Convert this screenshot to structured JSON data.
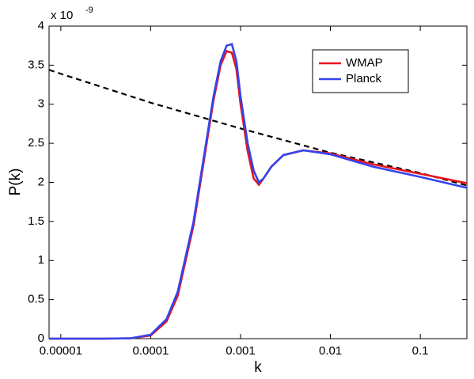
{
  "chart_data": {
    "type": "line",
    "x_label": "k",
    "y_label": "P(k)",
    "y_multiplier": "x 10",
    "y_multiplier_exp": "-9",
    "xscale": "log",
    "xlim": [
      7.4e-06,
      0.33
    ],
    "xticks": [
      1e-05,
      0.0001,
      0.001,
      0.01,
      0.1
    ],
    "ylim": [
      0,
      4
    ],
    "yticks": [
      0,
      0.5,
      1,
      1.5,
      2,
      2.5,
      3,
      3.5,
      4
    ],
    "legend": "upper right",
    "series": [
      {
        "color": "#000000",
        "dashed": true,
        "x": [
          7.4e-06,
          1e-05,
          0.0001,
          0.001,
          0.01,
          0.1,
          0.33
        ],
        "values": [
          3.44,
          3.39,
          3.02,
          2.69,
          2.38,
          2.12,
          1.96
        ]
      },
      {
        "name": "WMAP",
        "color": "#e8141c",
        "x": [
          7.4e-06,
          1e-05,
          3e-05,
          6e-05,
          0.0001,
          0.00015,
          0.0002,
          0.0003,
          0.0004,
          0.0005,
          0.0006,
          0.0007,
          0.0008,
          0.0009,
          0.001,
          0.0012,
          0.0014,
          0.0016,
          0.0018,
          0.0022,
          0.003,
          0.005,
          0.01,
          0.03,
          0.1,
          0.33
        ],
        "values": [
          0,
          0,
          0,
          0.004,
          0.04,
          0.22,
          0.55,
          1.45,
          2.35,
          3.05,
          3.5,
          3.68,
          3.66,
          3.45,
          3.0,
          2.4,
          2.05,
          1.97,
          2.05,
          2.2,
          2.35,
          2.41,
          2.37,
          2.23,
          2.11,
          1.99
        ]
      },
      {
        "name": "Planck",
        "color": "#3344ee",
        "x": [
          7.4e-06,
          1e-05,
          3e-05,
          6e-05,
          0.0001,
          0.00015,
          0.0002,
          0.0003,
          0.0004,
          0.0005,
          0.0006,
          0.0007,
          0.0008,
          0.0009,
          0.001,
          0.0012,
          0.0014,
          0.0016,
          0.0018,
          0.0022,
          0.003,
          0.005,
          0.01,
          0.03,
          0.1,
          0.33
        ],
        "values": [
          0,
          0,
          0,
          0.005,
          0.05,
          0.25,
          0.6,
          1.5,
          2.4,
          3.1,
          3.55,
          3.75,
          3.77,
          3.55,
          3.1,
          2.5,
          2.15,
          2.0,
          2.05,
          2.2,
          2.35,
          2.41,
          2.36,
          2.2,
          2.07,
          1.93
        ]
      }
    ]
  }
}
